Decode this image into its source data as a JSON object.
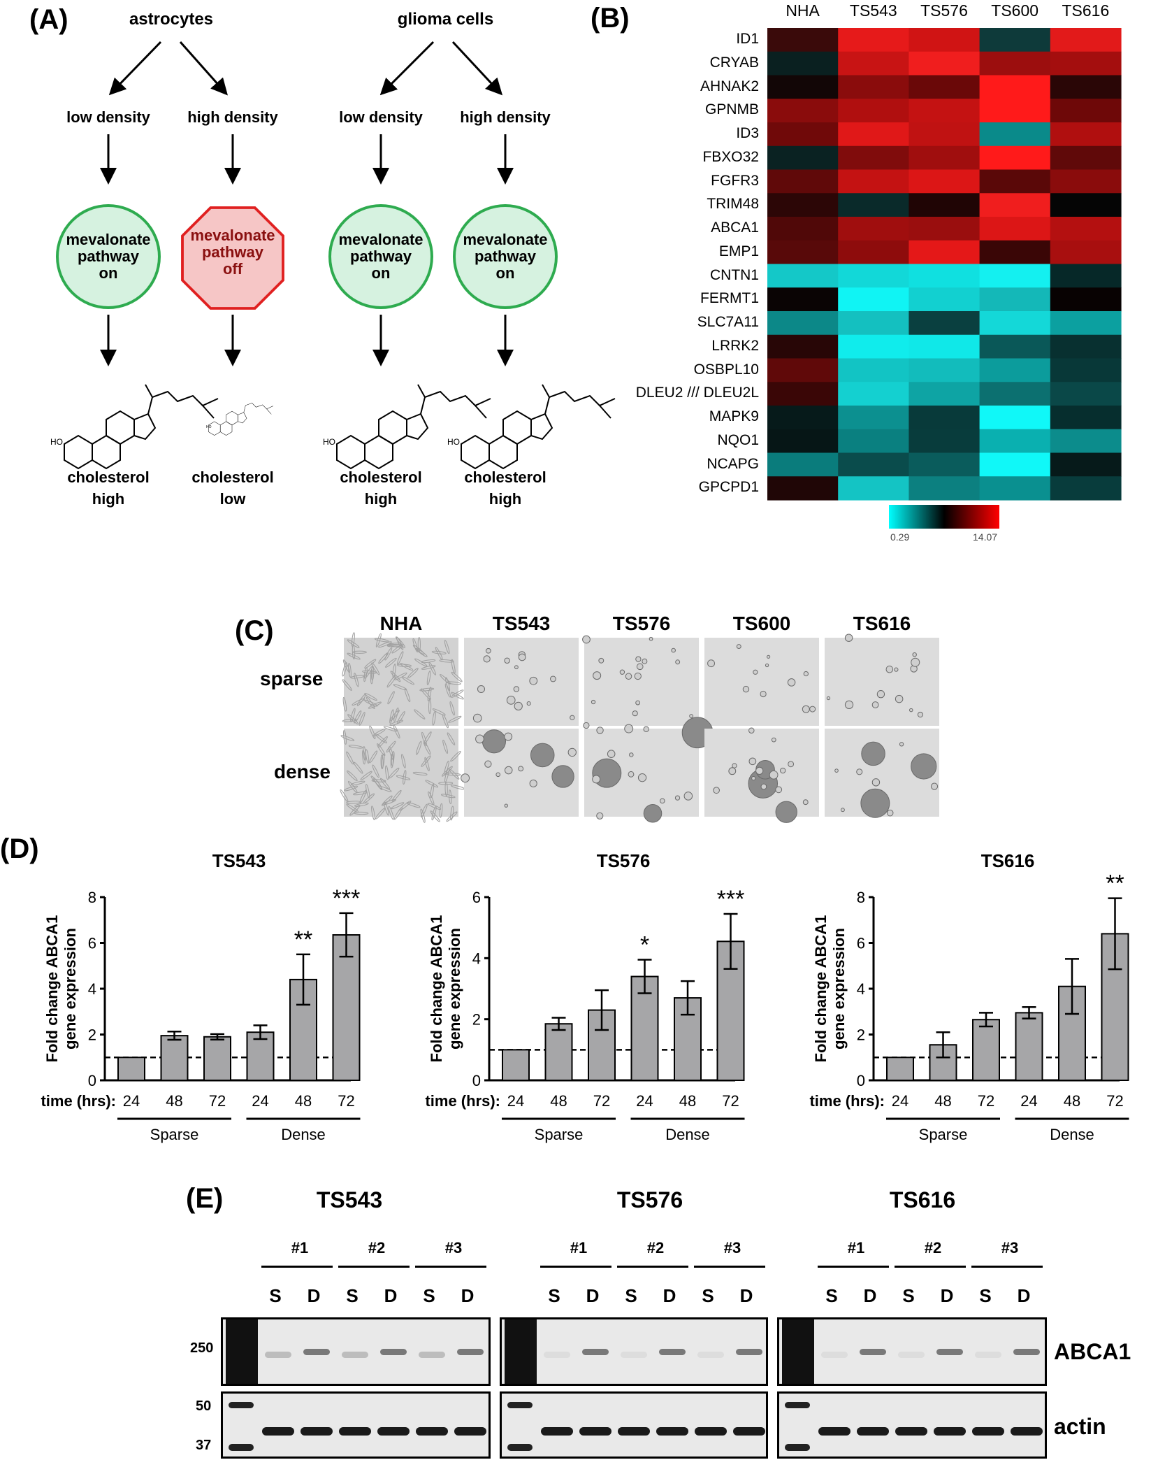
{
  "panel_labels": {
    "a": "(A)",
    "b": "(B)",
    "c": "(C)",
    "d": "(D)",
    "e": "(E)"
  },
  "panel_a": {
    "astrocytes": "astrocytes",
    "glioma": "glioma cells",
    "low_density": "low density",
    "high_density": "high density",
    "on_l1": "mevalonate",
    "on_l2": "pathway",
    "on_l3": "on",
    "off_l1": "mevalonate",
    "off_l2": "pathway",
    "off_l3": "off",
    "ho": "HO",
    "chol": "cholesterol",
    "high": "high",
    "low": "low"
  },
  "panel_b": {
    "columns": [
      "NHA",
      "TS543",
      "TS576",
      "TS600",
      "TS616"
    ],
    "genes": [
      "ID1",
      "CRYAB",
      "AHNAK2",
      "GPNMB",
      "ID3",
      "FBXO32",
      "FGFR3",
      "TRIM48",
      "ABCA1",
      "EMP1",
      "CNTN1",
      "FERMT1",
      "SLC7A11",
      "LRRK2",
      "OSBPL10",
      "DLEU2 /// DLEU2L",
      "MAPK9",
      "NQO1",
      "NCAPG",
      "GPCPD1"
    ],
    "scale_min": "0.29",
    "scale_max": "14.07"
  },
  "panel_c": {
    "columns": [
      "NHA",
      "TS543",
      "TS576",
      "TS600",
      "TS616"
    ],
    "rows": [
      "sparse",
      "dense"
    ]
  },
  "panel_d": {
    "ylabel_1": "Fold change ABCA1",
    "ylabel_2": "gene expression",
    "time_label": "time (hrs):",
    "sparse": "Sparse",
    "dense": "Dense"
  },
  "chart_data": [
    {
      "type": "bar",
      "title": "TS543",
      "categories": [
        "24",
        "48",
        "72",
        "24",
        "48",
        "72"
      ],
      "values": [
        1.0,
        1.95,
        1.9,
        2.1,
        4.4,
        6.35
      ],
      "errors": [
        0,
        0.18,
        0.12,
        0.3,
        1.1,
        0.95
      ],
      "significance": [
        "",
        "",
        "",
        "",
        "**",
        "***"
      ],
      "ylim": [
        0,
        8
      ],
      "yticks": [
        "0",
        "2",
        "4",
        "6",
        "8"
      ],
      "reference_line": 1,
      "xlabel": "time (hrs)",
      "ylabel": "Fold change ABCA1 gene expression",
      "groups": [
        "Sparse",
        "Dense"
      ]
    },
    {
      "type": "bar",
      "title": "TS576",
      "categories": [
        "24",
        "48",
        "72",
        "24",
        "48",
        "72"
      ],
      "values": [
        1.0,
        1.85,
        2.3,
        3.4,
        2.7,
        4.55
      ],
      "errors": [
        0,
        0.2,
        0.65,
        0.55,
        0.55,
        0.9
      ],
      "significance": [
        "",
        "",
        "",
        "*",
        "",
        "***"
      ],
      "ylim": [
        0,
        6
      ],
      "yticks": [
        "0",
        "2",
        "4",
        "6"
      ],
      "reference_line": 1,
      "xlabel": "time (hrs)",
      "ylabel": "Fold change ABCA1 gene expression",
      "groups": [
        "Sparse",
        "Dense"
      ]
    },
    {
      "type": "bar",
      "title": "TS616",
      "categories": [
        "24",
        "48",
        "72",
        "24",
        "48",
        "72"
      ],
      "values": [
        1.0,
        1.55,
        2.65,
        2.95,
        4.1,
        6.4
      ],
      "errors": [
        0,
        0.55,
        0.3,
        0.25,
        1.2,
        1.55
      ],
      "significance": [
        "",
        "",
        "",
        "",
        "",
        "**"
      ],
      "ylim": [
        0,
        8
      ],
      "yticks": [
        "0",
        "2",
        "4",
        "6",
        "8"
      ],
      "reference_line": 1,
      "xlabel": "time (hrs)",
      "ylabel": "Fold change ABCA1 gene expression",
      "groups": [
        "Sparse",
        "Dense"
      ]
    }
  ],
  "panel_e": {
    "titles": [
      "TS543",
      "TS576",
      "TS616"
    ],
    "reps": [
      "#1",
      "#2",
      "#3"
    ],
    "s": "S",
    "d": "D",
    "mw_250": "250",
    "mw_50": "50",
    "mw_37": "37",
    "abca1": "ABCA1",
    "actin": "actin"
  }
}
